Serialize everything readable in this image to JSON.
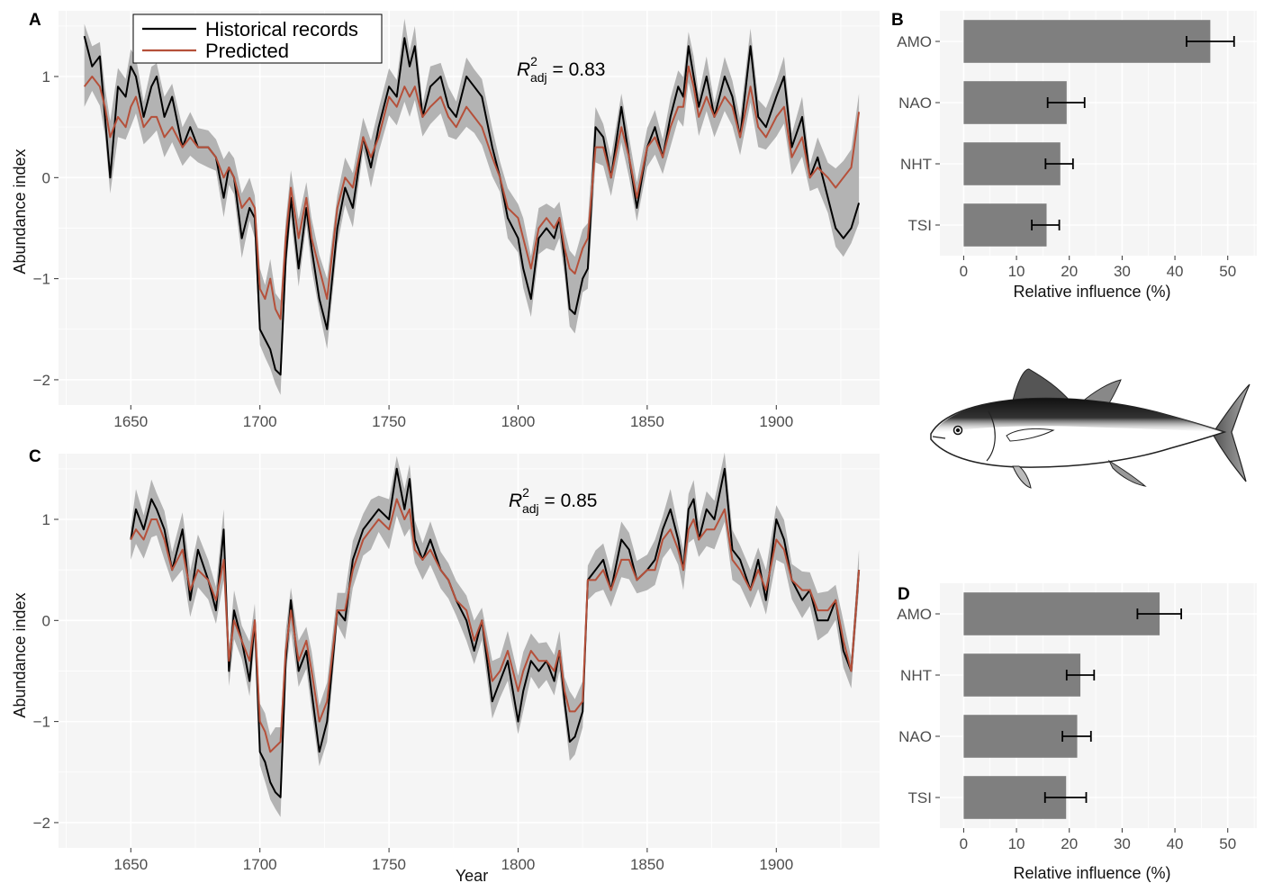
{
  "colors": {
    "historical": "#000000",
    "predicted": "#b5503a",
    "band": "#b3b3b3",
    "panel_bg": "#f5f5f5",
    "bar": "#7f7f7f"
  },
  "legend": {
    "historical": "Historical records",
    "predicted": "Predicted"
  },
  "icon": {
    "name": "bluefin-tuna-illustration"
  },
  "chart_data": [
    {
      "panel": "A",
      "type": "line",
      "ylabel": "Abundance index",
      "xlabel": "",
      "xlim": [
        1622,
        1940
      ],
      "ylim": [
        -2.25,
        1.65
      ],
      "xticks": [
        "1650",
        "1700",
        "1750",
        "1800",
        "1850",
        "1900"
      ],
      "yticks": [
        "−2",
        "−1",
        "0",
        "1"
      ],
      "annotation": {
        "r2": "R",
        "sup": "2",
        "sub": "adj",
        "value": " = 0.83"
      },
      "x": [
        1632,
        1635,
        1638,
        1640,
        1642,
        1645,
        1648,
        1650,
        1652,
        1655,
        1658,
        1660,
        1663,
        1666,
        1670,
        1673,
        1676,
        1680,
        1683,
        1686,
        1688,
        1690,
        1693,
        1696,
        1698,
        1700,
        1702,
        1704,
        1706,
        1708,
        1710,
        1712,
        1715,
        1718,
        1720,
        1723,
        1726,
        1730,
        1733,
        1736,
        1740,
        1743,
        1746,
        1750,
        1753,
        1756,
        1758,
        1760,
        1763,
        1766,
        1770,
        1773,
        1776,
        1780,
        1783,
        1786,
        1790,
        1793,
        1796,
        1800,
        1802,
        1805,
        1808,
        1811,
        1814,
        1816,
        1818,
        1820,
        1822,
        1825,
        1827,
        1830,
        1833,
        1836,
        1840,
        1843,
        1846,
        1850,
        1853,
        1856,
        1859,
        1862,
        1864,
        1866,
        1868,
        1870,
        1873,
        1876,
        1880,
        1883,
        1886,
        1890,
        1893,
        1896,
        1900,
        1903,
        1906,
        1910,
        1913,
        1916,
        1920,
        1923,
        1926,
        1929,
        1932
      ],
      "series": [
        {
          "name": "Historical records",
          "values": [
            1.4,
            1.1,
            1.2,
            0.6,
            0.0,
            0.9,
            0.8,
            1.1,
            1.0,
            0.6,
            0.9,
            1.0,
            0.6,
            0.8,
            0.3,
            0.5,
            0.3,
            0.3,
            0.2,
            -0.2,
            0.1,
            0.0,
            -0.6,
            -0.3,
            -0.4,
            -1.5,
            -1.6,
            -1.7,
            -1.9,
            -1.95,
            -0.8,
            -0.2,
            -0.9,
            -0.3,
            -0.7,
            -1.2,
            -1.5,
            -0.5,
            -0.1,
            -0.3,
            0.4,
            0.1,
            0.5,
            0.9,
            0.8,
            1.38,
            1.1,
            1.3,
            0.6,
            0.9,
            1.0,
            0.7,
            0.6,
            1.0,
            0.9,
            0.8,
            0.3,
            0.0,
            -0.4,
            -0.6,
            -0.9,
            -1.2,
            -0.6,
            -0.5,
            -0.6,
            -0.4,
            -0.8,
            -1.3,
            -1.35,
            -1.0,
            -0.9,
            0.5,
            0.4,
            0.0,
            0.7,
            0.2,
            -0.3,
            0.3,
            0.5,
            0.2,
            0.6,
            0.9,
            0.8,
            1.3,
            1.0,
            0.7,
            1.0,
            0.6,
            1.0,
            0.8,
            0.4,
            1.3,
            0.6,
            0.5,
            0.8,
            1.0,
            0.3,
            0.6,
            0.0,
            0.2,
            -0.2,
            -0.5,
            -0.6,
            -0.5,
            -0.25
          ]
        },
        {
          "name": "Predicted",
          "values": [
            0.9,
            1.0,
            0.9,
            0.7,
            0.4,
            0.6,
            0.5,
            0.7,
            0.8,
            0.5,
            0.6,
            0.6,
            0.4,
            0.5,
            0.3,
            0.4,
            0.3,
            0.3,
            0.2,
            0.0,
            0.1,
            0.0,
            -0.3,
            -0.2,
            -0.3,
            -1.1,
            -1.2,
            -1.0,
            -1.3,
            -1.4,
            -0.6,
            -0.1,
            -0.6,
            -0.2,
            -0.6,
            -0.9,
            -1.2,
            -0.3,
            0.0,
            -0.1,
            0.4,
            0.2,
            0.4,
            0.8,
            0.7,
            0.9,
            0.8,
            0.9,
            0.6,
            0.7,
            0.8,
            0.6,
            0.5,
            0.7,
            0.6,
            0.5,
            0.2,
            0.0,
            -0.3,
            -0.4,
            -0.6,
            -0.9,
            -0.5,
            -0.4,
            -0.5,
            -0.4,
            -0.7,
            -0.9,
            -0.95,
            -0.7,
            -0.6,
            0.3,
            0.3,
            0.0,
            0.5,
            0.2,
            -0.2,
            0.3,
            0.4,
            0.2,
            0.5,
            0.7,
            0.7,
            1.1,
            0.9,
            0.6,
            0.8,
            0.6,
            0.8,
            0.7,
            0.4,
            0.9,
            0.5,
            0.4,
            0.6,
            0.7,
            0.2,
            0.4,
            0.0,
            0.1,
            0.0,
            -0.1,
            0.0,
            0.1,
            0.65
          ]
        }
      ]
    },
    {
      "panel": "C",
      "type": "line",
      "ylabel": "Abundance index",
      "xlabel": "Year",
      "xlim": [
        1622,
        1940
      ],
      "ylim": [
        -2.25,
        1.65
      ],
      "xticks": [
        "1650",
        "1700",
        "1750",
        "1800",
        "1850",
        "1900"
      ],
      "yticks": [
        "−2",
        "−1",
        "0",
        "1"
      ],
      "annotation": {
        "r2": "R",
        "sup": "2",
        "sub": "adj",
        "value": " = 0.85"
      },
      "x": [
        1650,
        1652,
        1655,
        1658,
        1660,
        1663,
        1666,
        1670,
        1673,
        1676,
        1680,
        1683,
        1686,
        1688,
        1690,
        1693,
        1696,
        1698,
        1700,
        1702,
        1704,
        1706,
        1708,
        1710,
        1712,
        1715,
        1718,
        1720,
        1723,
        1726,
        1730,
        1733,
        1736,
        1740,
        1743,
        1746,
        1750,
        1753,
        1756,
        1758,
        1760,
        1763,
        1766,
        1770,
        1773,
        1776,
        1780,
        1783,
        1786,
        1790,
        1793,
        1796,
        1800,
        1802,
        1805,
        1808,
        1811,
        1814,
        1816,
        1818,
        1820,
        1822,
        1825,
        1827,
        1830,
        1833,
        1836,
        1840,
        1843,
        1846,
        1850,
        1853,
        1856,
        1859,
        1862,
        1864,
        1866,
        1868,
        1870,
        1873,
        1876,
        1880,
        1883,
        1886,
        1890,
        1893,
        1896,
        1900,
        1903,
        1906,
        1910,
        1913,
        1916,
        1920,
        1923,
        1926,
        1929,
        1932
      ],
      "series": [
        {
          "name": "Historical records",
          "values": [
            0.8,
            1.1,
            0.9,
            1.2,
            1.1,
            0.9,
            0.5,
            0.9,
            0.2,
            0.7,
            0.4,
            0.1,
            0.9,
            -0.5,
            0.1,
            -0.2,
            -0.6,
            0.0,
            -1.3,
            -1.4,
            -1.6,
            -1.7,
            -1.75,
            -0.4,
            0.2,
            -0.5,
            -0.3,
            -0.7,
            -1.3,
            -1.0,
            0.1,
            0.0,
            0.6,
            0.9,
            1.0,
            1.1,
            1.0,
            1.5,
            1.1,
            1.4,
            0.8,
            0.6,
            0.8,
            0.5,
            0.4,
            0.2,
            0.0,
            -0.3,
            0.0,
            -0.8,
            -0.6,
            -0.4,
            -1.0,
            -0.7,
            -0.4,
            -0.5,
            -0.4,
            -0.6,
            -0.3,
            -0.8,
            -1.2,
            -1.15,
            -0.9,
            0.4,
            0.5,
            0.6,
            0.3,
            0.8,
            0.7,
            0.4,
            0.5,
            0.6,
            0.9,
            1.1,
            0.8,
            0.5,
            1.1,
            1.2,
            0.8,
            1.1,
            1.0,
            1.5,
            0.7,
            0.6,
            0.3,
            0.6,
            0.2,
            1.0,
            0.8,
            0.4,
            0.2,
            0.3,
            0.0,
            0.0,
            0.2,
            -0.3,
            -0.5,
            0.5
          ]
        },
        {
          "name": "Predicted",
          "values": [
            0.8,
            0.9,
            0.8,
            1.0,
            1.0,
            0.8,
            0.5,
            0.7,
            0.3,
            0.5,
            0.4,
            0.2,
            0.6,
            -0.4,
            0.0,
            -0.2,
            -0.4,
            0.0,
            -1.0,
            -1.1,
            -1.3,
            -1.25,
            -1.2,
            -0.3,
            0.1,
            -0.4,
            -0.2,
            -0.5,
            -1.0,
            -0.8,
            0.1,
            0.1,
            0.5,
            0.8,
            0.9,
            1.0,
            0.9,
            1.2,
            1.0,
            1.1,
            0.7,
            0.6,
            0.7,
            0.5,
            0.4,
            0.2,
            0.1,
            -0.2,
            0.0,
            -0.6,
            -0.5,
            -0.3,
            -0.7,
            -0.5,
            -0.3,
            -0.4,
            -0.4,
            -0.5,
            -0.3,
            -0.7,
            -0.9,
            -0.9,
            -0.8,
            0.4,
            0.4,
            0.5,
            0.3,
            0.6,
            0.6,
            0.4,
            0.5,
            0.5,
            0.8,
            0.9,
            0.7,
            0.5,
            0.9,
            1.0,
            0.8,
            0.9,
            0.9,
            1.1,
            0.6,
            0.5,
            0.3,
            0.5,
            0.3,
            0.8,
            0.7,
            0.4,
            0.3,
            0.3,
            0.1,
            0.1,
            0.2,
            -0.2,
            -0.5,
            0.5
          ]
        }
      ]
    },
    {
      "panel": "B",
      "type": "bar",
      "orientation": "horizontal",
      "xlabel": "Relative influence (%)",
      "xlim": [
        -4.5,
        55.5
      ],
      "xticks": [
        "0",
        "10",
        "20",
        "30",
        "40",
        "50"
      ],
      "categories": [
        "AMO",
        "NAO",
        "NHT",
        "TSI"
      ],
      "values": [
        46.7,
        19.5,
        18.3,
        15.7
      ],
      "error_low": [
        42.2,
        15.9,
        15.5,
        12.9
      ],
      "error_high": [
        51.2,
        22.9,
        20.7,
        18.1
      ]
    },
    {
      "panel": "D",
      "type": "bar",
      "orientation": "horizontal",
      "xlabel": "Relative influence (%)",
      "xlim": [
        -4.5,
        55.5
      ],
      "xticks": [
        "0",
        "10",
        "20",
        "30",
        "40",
        "50"
      ],
      "categories": [
        "AMO",
        "NHT",
        "NAO",
        "TSI"
      ],
      "values": [
        37.1,
        22.1,
        21.5,
        19.4
      ],
      "error_low": [
        32.9,
        19.5,
        18.7,
        15.4
      ],
      "error_high": [
        41.2,
        24.7,
        24.1,
        23.2
      ]
    }
  ]
}
